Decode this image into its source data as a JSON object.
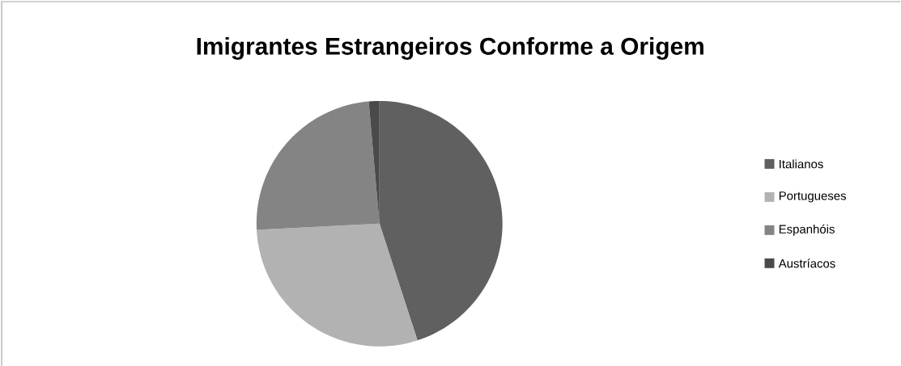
{
  "chart_data": {
    "type": "pie",
    "title": "Imigrantes Estrangeiros Conforme a Origem",
    "categories": [
      "Italianos",
      "Portugueses",
      "Espanhóis",
      "Austríacos"
    ],
    "values": [
      45,
      29.2,
      24.4,
      1.4
    ],
    "colors": [
      "#606060",
      "#b2b2b2",
      "#848484",
      "#4a4a4a"
    ],
    "legend": "right"
  }
}
